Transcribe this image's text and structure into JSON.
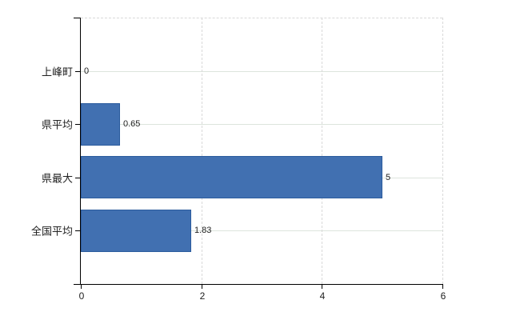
{
  "chart_data": {
    "type": "bar",
    "orientation": "horizontal",
    "title": "",
    "categories": [
      "上峰町",
      "県平均",
      "県最大",
      "全国平均"
    ],
    "values": [
      0,
      0.65,
      5,
      1.83
    ],
    "value_labels": [
      "0",
      "0.65",
      "5",
      "1.83"
    ],
    "xlabel": "",
    "ylabel": "",
    "xlim": [
      0,
      6
    ],
    "xticks": [
      0,
      2,
      4,
      6
    ],
    "xtick_labels": [
      "0",
      "2",
      "4",
      "6"
    ],
    "grid": true,
    "legend": false,
    "layout_hints": {
      "category_gridlines": "solid light lines through each category center",
      "value_gridlines": "dashed light vertical lines at 2, 4, 6 plus dashed top border"
    },
    "colors": {
      "bar_fill": "#4170b1",
      "bar_border": "#2c5c9e",
      "grid_horizontal": "#dde4dd",
      "grid_vertical": "#d9d9d9",
      "axis": "#000000",
      "text": "#222222",
      "background": "#ffffff"
    }
  }
}
